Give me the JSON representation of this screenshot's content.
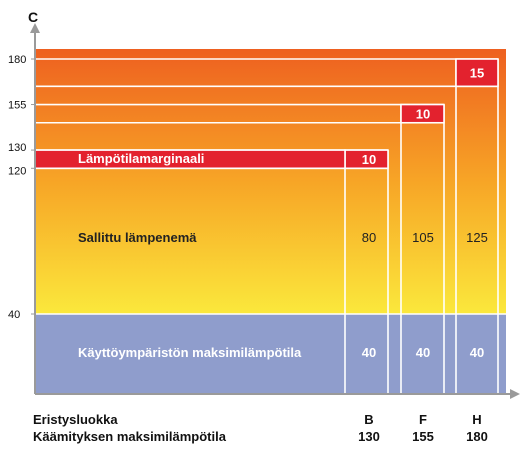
{
  "chart_data": {
    "type": "bar",
    "title": "",
    "ylabel": "C",
    "xlabel": "Eristysluokka",
    "y_ticks": [
      180,
      155,
      130,
      120,
      40
    ],
    "ylim": [
      0,
      190
    ],
    "categories": [
      "B",
      "F",
      "H"
    ],
    "max_winding_label": "Käämityksen maksimilämpötila",
    "max_winding_values": [
      "130",
      "155",
      "180"
    ],
    "series": [
      {
        "name": "Käyttöympäristön maksimilämpötila",
        "values": [
          40,
          40,
          40
        ],
        "labels": [
          "40",
          "40",
          "40"
        ],
        "color": "#8f9dcc"
      },
      {
        "name": "Sallittu lämpenemä",
        "values": [
          80,
          105,
          125
        ],
        "labels": [
          "80",
          "105",
          "125"
        ]
      },
      {
        "name": "Lämpötilamarginaali",
        "values": [
          10,
          10,
          15
        ],
        "labels": [
          "10",
          "10",
          "15"
        ],
        "color": "#e3222e"
      }
    ],
    "gradient": {
      "bottom": "#fbe83c",
      "middle": "#f7a526",
      "top": "#ee6020"
    },
    "axis_color": "#9a9a9a"
  }
}
